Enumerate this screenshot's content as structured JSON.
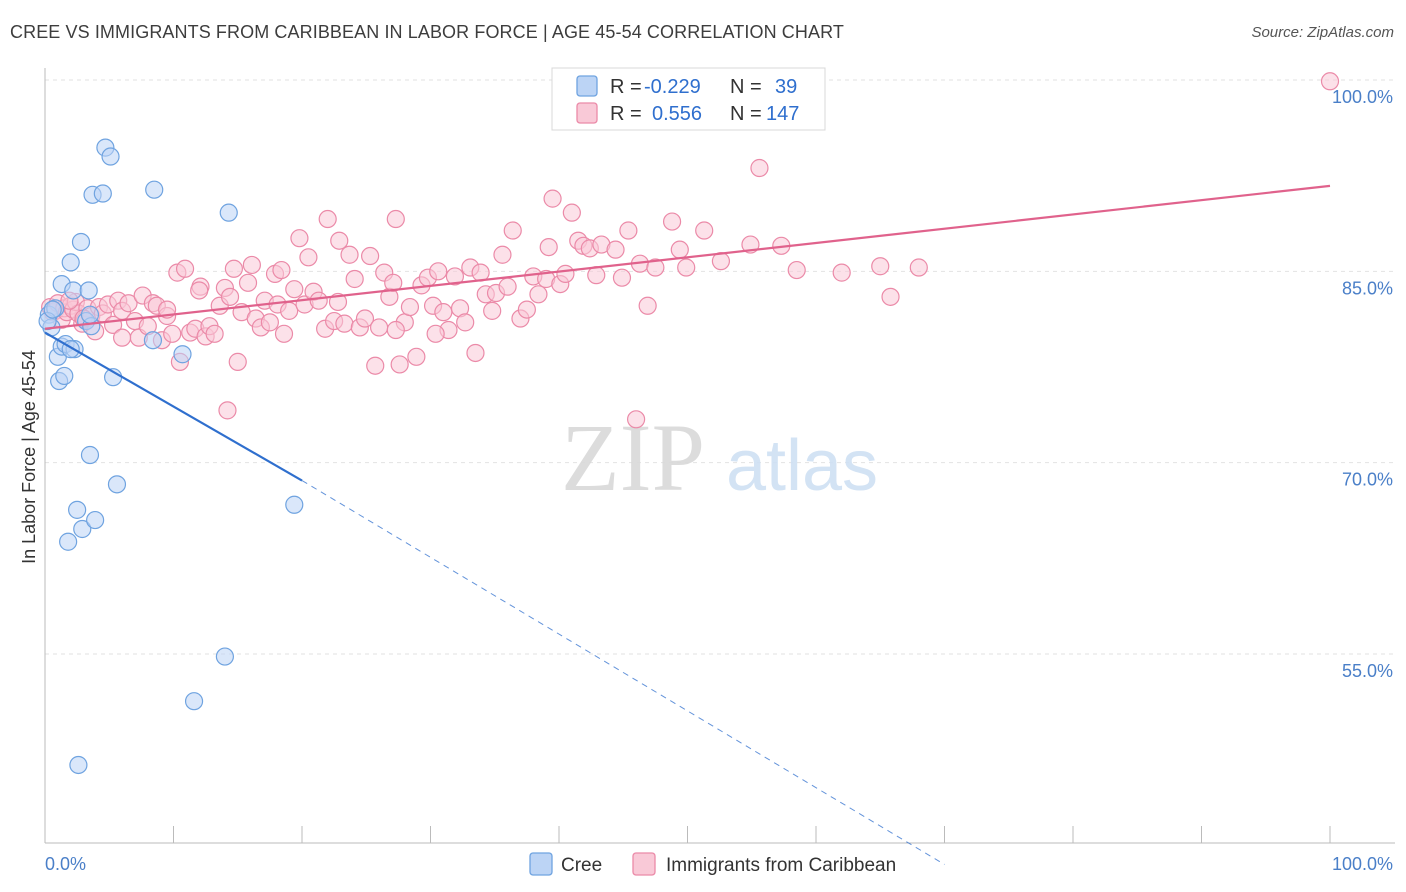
{
  "title": "CREE VS IMMIGRANTS FROM CARIBBEAN IN LABOR FORCE | AGE 45-54 CORRELATION CHART",
  "source": "Source: ZipAtlas.com",
  "watermark": {
    "zip": "ZIP",
    "atlas": "atlas"
  },
  "chart_data": {
    "type": "scatter",
    "ylabel": "In Labor Force | Age 45-54",
    "xlim": [
      0,
      100
    ],
    "ylim": [
      42,
      100
    ],
    "x_tick_labels": {
      "left": "0.0%",
      "right": "100.0%"
    },
    "y_ticks": [
      {
        "value": 100,
        "label": "100.0%"
      },
      {
        "value": 85,
        "label": "85.0%"
      },
      {
        "value": 70,
        "label": "70.0%"
      },
      {
        "value": 55,
        "label": "55.0%"
      }
    ],
    "grid": true,
    "legend_placement": "top-center",
    "stats": [
      {
        "series": "Cree",
        "r_label": "R =",
        "r_value": "-0.229",
        "n_label": "N =",
        "n_value": "39"
      },
      {
        "series": "Immigrants from Caribbean",
        "r_label": "R =",
        "r_value": "0.556",
        "n_label": "N =",
        "n_value": "147"
      }
    ],
    "series": [
      {
        "name": "Cree",
        "color": "#6fa3e0",
        "fill": "#bcd4f5",
        "line_color": "#2f6fce",
        "trend": {
          "x0": 0,
          "y0": 80.2,
          "x1": 20,
          "y1": 68.6,
          "dash_to_x": 70,
          "dash_to_y": 38.5
        },
        "points": [
          [
            0.3,
            81.6
          ],
          [
            0.5,
            80.6
          ],
          [
            0.8,
            82.1
          ],
          [
            1.0,
            78.3
          ],
          [
            1.1,
            76.4
          ],
          [
            1.3,
            84.0
          ],
          [
            1.3,
            79.1
          ],
          [
            1.5,
            76.8
          ],
          [
            1.6,
            79.3
          ],
          [
            1.8,
            63.8
          ],
          [
            2.0,
            85.7
          ],
          [
            2.2,
            83.5
          ],
          [
            2.3,
            78.9
          ],
          [
            2.5,
            66.3
          ],
          [
            2.6,
            46.3
          ],
          [
            2.8,
            87.3
          ],
          [
            2.9,
            64.8
          ],
          [
            3.2,
            81.1
          ],
          [
            3.4,
            83.5
          ],
          [
            3.5,
            70.6
          ],
          [
            3.6,
            80.7
          ],
          [
            3.7,
            91.0
          ],
          [
            3.9,
            65.5
          ],
          [
            4.5,
            91.1
          ],
          [
            4.7,
            94.7
          ],
          [
            5.1,
            94.0
          ],
          [
            5.3,
            76.7
          ],
          [
            5.6,
            68.3
          ],
          [
            8.4,
            79.6
          ],
          [
            8.5,
            91.4
          ],
          [
            10.7,
            78.5
          ],
          [
            14.0,
            54.8
          ],
          [
            14.3,
            89.6
          ],
          [
            19.4,
            66.7
          ],
          [
            11.6,
            51.3
          ],
          [
            0.2,
            81.1
          ],
          [
            0.6,
            82.0
          ],
          [
            2.0,
            78.9
          ],
          [
            3.5,
            81.6
          ]
        ]
      },
      {
        "name": "Immigrants from Caribbean",
        "color": "#eb8aa8",
        "fill": "#f9c9d7",
        "line_color": "#e0628c",
        "trend": {
          "x0": 0,
          "y0": 80.5,
          "x1": 100,
          "y1": 91.7
        },
        "points": [
          [
            0.4,
            82.2
          ],
          [
            0.6,
            81.8
          ],
          [
            0.8,
            81.9
          ],
          [
            1.0,
            82.5
          ],
          [
            1.3,
            81.2
          ],
          [
            1.5,
            82.1
          ],
          [
            1.7,
            81.8
          ],
          [
            2.0,
            82.3
          ],
          [
            2.2,
            82.0
          ],
          [
            2.4,
            82.6
          ],
          [
            2.6,
            81.7
          ],
          [
            2.9,
            80.9
          ],
          [
            3.1,
            81.2
          ],
          [
            3.3,
            82.1
          ],
          [
            3.6,
            81.5
          ],
          [
            3.9,
            80.3
          ],
          [
            4.2,
            82.2
          ],
          [
            4.5,
            81.7
          ],
          [
            4.9,
            82.4
          ],
          [
            5.3,
            80.8
          ],
          [
            5.7,
            82.7
          ],
          [
            6.0,
            81.9
          ],
          [
            6.5,
            82.5
          ],
          [
            7.0,
            81.1
          ],
          [
            7.3,
            79.8
          ],
          [
            7.6,
            83.1
          ],
          [
            8.0,
            80.7
          ],
          [
            8.4,
            82.5
          ],
          [
            8.7,
            82.3
          ],
          [
            9.1,
            79.6
          ],
          [
            9.5,
            81.5
          ],
          [
            9.9,
            80.1
          ],
          [
            10.3,
            84.9
          ],
          [
            10.5,
            77.9
          ],
          [
            10.9,
            85.2
          ],
          [
            11.3,
            80.2
          ],
          [
            11.7,
            80.5
          ],
          [
            12.1,
            83.8
          ],
          [
            12.5,
            79.9
          ],
          [
            12.8,
            80.7
          ],
          [
            13.2,
            80.1
          ],
          [
            13.6,
            82.3
          ],
          [
            14.0,
            83.7
          ],
          [
            14.4,
            83.0
          ],
          [
            14.7,
            85.2
          ],
          [
            15.0,
            77.9
          ],
          [
            15.3,
            81.8
          ],
          [
            15.8,
            84.1
          ],
          [
            16.1,
            85.5
          ],
          [
            16.4,
            81.3
          ],
          [
            16.8,
            80.6
          ],
          [
            17.1,
            82.7
          ],
          [
            17.5,
            81.0
          ],
          [
            17.9,
            84.8
          ],
          [
            18.1,
            82.4
          ],
          [
            18.6,
            80.1
          ],
          [
            19.0,
            81.9
          ],
          [
            19.4,
            83.6
          ],
          [
            19.8,
            87.6
          ],
          [
            20.2,
            82.4
          ],
          [
            20.5,
            86.1
          ],
          [
            20.9,
            83.4
          ],
          [
            21.3,
            82.7
          ],
          [
            21.8,
            80.5
          ],
          [
            22.0,
            89.1
          ],
          [
            22.5,
            81.1
          ],
          [
            22.9,
            87.4
          ],
          [
            23.3,
            80.9
          ],
          [
            23.7,
            86.3
          ],
          [
            24.1,
            84.4
          ],
          [
            24.5,
            80.6
          ],
          [
            24.9,
            81.3
          ],
          [
            25.3,
            86.2
          ],
          [
            25.7,
            77.6
          ],
          [
            26.0,
            80.6
          ],
          [
            26.4,
            84.9
          ],
          [
            26.8,
            83.0
          ],
          [
            27.1,
            84.1
          ],
          [
            27.3,
            89.1
          ],
          [
            27.6,
            77.7
          ],
          [
            28.0,
            81.0
          ],
          [
            28.4,
            82.2
          ],
          [
            28.9,
            78.3
          ],
          [
            29.3,
            83.9
          ],
          [
            29.8,
            84.5
          ],
          [
            30.2,
            82.3
          ],
          [
            30.6,
            85.0
          ],
          [
            31.0,
            81.8
          ],
          [
            31.4,
            80.4
          ],
          [
            31.9,
            84.6
          ],
          [
            32.3,
            82.1
          ],
          [
            32.7,
            81.0
          ],
          [
            33.1,
            85.3
          ],
          [
            33.5,
            78.6
          ],
          [
            33.9,
            84.9
          ],
          [
            34.3,
            83.2
          ],
          [
            34.8,
            81.9
          ],
          [
            35.1,
            83.3
          ],
          [
            35.6,
            86.3
          ],
          [
            36.0,
            83.8
          ],
          [
            36.4,
            88.2
          ],
          [
            37.0,
            81.3
          ],
          [
            37.5,
            82.0
          ],
          [
            38.0,
            84.6
          ],
          [
            38.4,
            83.2
          ],
          [
            39.0,
            84.4
          ],
          [
            39.2,
            86.9
          ],
          [
            39.5,
            90.7
          ],
          [
            40.1,
            84.0
          ],
          [
            40.5,
            84.8
          ],
          [
            41.0,
            89.6
          ],
          [
            41.5,
            87.4
          ],
          [
            41.9,
            87.0
          ],
          [
            42.4,
            86.8
          ],
          [
            42.9,
            84.7
          ],
          [
            43.3,
            87.1
          ],
          [
            44.4,
            86.7
          ],
          [
            44.9,
            84.5
          ],
          [
            45.4,
            88.2
          ],
          [
            46.3,
            85.6
          ],
          [
            46.9,
            82.3
          ],
          [
            47.5,
            85.3
          ],
          [
            48.8,
            88.9
          ],
          [
            49.4,
            86.7
          ],
          [
            49.9,
            85.3
          ],
          [
            51.3,
            88.2
          ],
          [
            52.6,
            85.8
          ],
          [
            54.9,
            87.1
          ],
          [
            55.6,
            93.1
          ],
          [
            57.3,
            87.0
          ],
          [
            58.5,
            85.1
          ],
          [
            62.0,
            84.9
          ],
          [
            65.0,
            85.4
          ],
          [
            65.8,
            83.0
          ],
          [
            68.0,
            85.3
          ],
          [
            100.0,
            99.9
          ],
          [
            46.0,
            73.4
          ],
          [
            14.2,
            74.1
          ],
          [
            6.0,
            79.8
          ],
          [
            9.5,
            82.0
          ],
          [
            12.0,
            83.5
          ],
          [
            3.0,
            81.3
          ],
          [
            1.9,
            82.7
          ],
          [
            27.3,
            80.4
          ],
          [
            22.8,
            82.6
          ],
          [
            18.4,
            85.1
          ],
          [
            30.4,
            80.1
          ]
        ]
      }
    ]
  }
}
